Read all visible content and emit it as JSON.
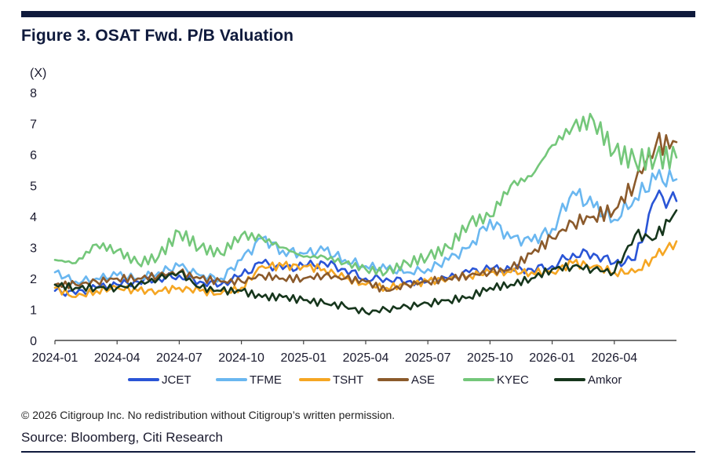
{
  "title": "Figure 3. OSAT Fwd. P/B Valuation",
  "note": "© 2026 Citigroup Inc. No redistribution without Citigroup’s written permission.",
  "source": "Source: Bloomberg, Citi Research",
  "chart_data": {
    "type": "line",
    "ylabel": "(X)",
    "xlabel": "",
    "ylim": [
      0,
      8
    ],
    "yticks": [
      0,
      1,
      2,
      3,
      4,
      5,
      6,
      7,
      8
    ],
    "xlim": [
      "2024-01",
      "2026-07"
    ],
    "xticks": [
      "2024-01",
      "2024-04",
      "2024-07",
      "2024-10",
      "2025-01",
      "2025-04",
      "2025-07",
      "2025-10",
      "2026-01",
      "2026-04"
    ],
    "grid": false,
    "legend": "bottom",
    "x": [
      "2024-01",
      "2024-02",
      "2024-03",
      "2024-04",
      "2024-05",
      "2024-06",
      "2024-07",
      "2024-08",
      "2024-09",
      "2024-10",
      "2024-11",
      "2024-12",
      "2025-01",
      "2025-02",
      "2025-03",
      "2025-04",
      "2025-05",
      "2025-06",
      "2025-07",
      "2025-08",
      "2025-09",
      "2025-10",
      "2025-11",
      "2025-12",
      "2026-01",
      "2026-02",
      "2026-03",
      "2026-04",
      "2026-05",
      "2026-06",
      "2026-07"
    ],
    "series": [
      {
        "name": "JCET",
        "color": "#2a55d6",
        "values": [
          1.6,
          1.5,
          1.7,
          1.8,
          1.9,
          2.0,
          2.1,
          1.9,
          1.8,
          2.1,
          2.5,
          2.3,
          2.4,
          2.5,
          2.3,
          2.0,
          2.0,
          1.9,
          1.9,
          2.0,
          2.2,
          2.3,
          2.3,
          2.3,
          2.4,
          2.8,
          2.8,
          2.5,
          2.6,
          4.6,
          4.5
        ]
      },
      {
        "name": "TFME",
        "color": "#6ab7f0",
        "values": [
          2.2,
          1.9,
          2.0,
          2.1,
          2.0,
          2.2,
          2.4,
          2.1,
          2.0,
          2.6,
          3.3,
          2.9,
          2.8,
          2.9,
          2.6,
          2.4,
          2.3,
          2.2,
          2.3,
          2.6,
          3.0,
          3.9,
          3.3,
          3.2,
          3.6,
          4.8,
          4.3,
          3.9,
          4.6,
          5.2,
          5.2
        ]
      },
      {
        "name": "TSHT",
        "color": "#f5a623",
        "values": [
          1.7,
          1.4,
          1.6,
          1.7,
          1.6,
          1.6,
          1.7,
          1.6,
          1.5,
          1.7,
          2.4,
          2.4,
          2.4,
          2.3,
          2.0,
          1.8,
          1.7,
          1.8,
          1.9,
          2.0,
          2.1,
          2.2,
          2.2,
          2.2,
          2.2,
          2.5,
          2.4,
          2.2,
          2.2,
          2.7,
          3.2
        ]
      },
      {
        "name": "ASE",
        "color": "#8b5a2b",
        "values": [
          1.8,
          1.8,
          1.9,
          2.0,
          2.0,
          2.1,
          2.2,
          2.0,
          1.9,
          1.9,
          2.1,
          2.0,
          2.0,
          2.1,
          2.0,
          1.9,
          1.6,
          1.8,
          1.9,
          2.0,
          2.1,
          2.2,
          2.3,
          2.8,
          3.3,
          3.8,
          4.0,
          4.2,
          5.1,
          6.3,
          6.4
        ]
      },
      {
        "name": "KYEC",
        "color": "#74c77a",
        "values": [
          2.6,
          2.5,
          3.1,
          2.9,
          2.5,
          2.7,
          3.5,
          3.0,
          2.8,
          3.4,
          3.3,
          3.0,
          2.7,
          2.7,
          2.5,
          2.3,
          2.2,
          2.5,
          2.7,
          3.0,
          3.8,
          4.0,
          5.0,
          5.3,
          6.3,
          6.9,
          7.1,
          6.1,
          5.8,
          5.9,
          5.9
        ]
      },
      {
        "name": "Amkor",
        "color": "#16361c",
        "values": [
          1.8,
          1.7,
          1.7,
          1.7,
          1.8,
          2.0,
          2.2,
          1.7,
          1.6,
          1.6,
          1.4,
          1.4,
          1.3,
          1.2,
          1.1,
          0.9,
          1.0,
          1.1,
          1.2,
          1.3,
          1.4,
          1.7,
          1.8,
          2.0,
          2.3,
          2.4,
          2.3,
          2.2,
          3.4,
          3.3,
          4.2
        ]
      }
    ]
  }
}
